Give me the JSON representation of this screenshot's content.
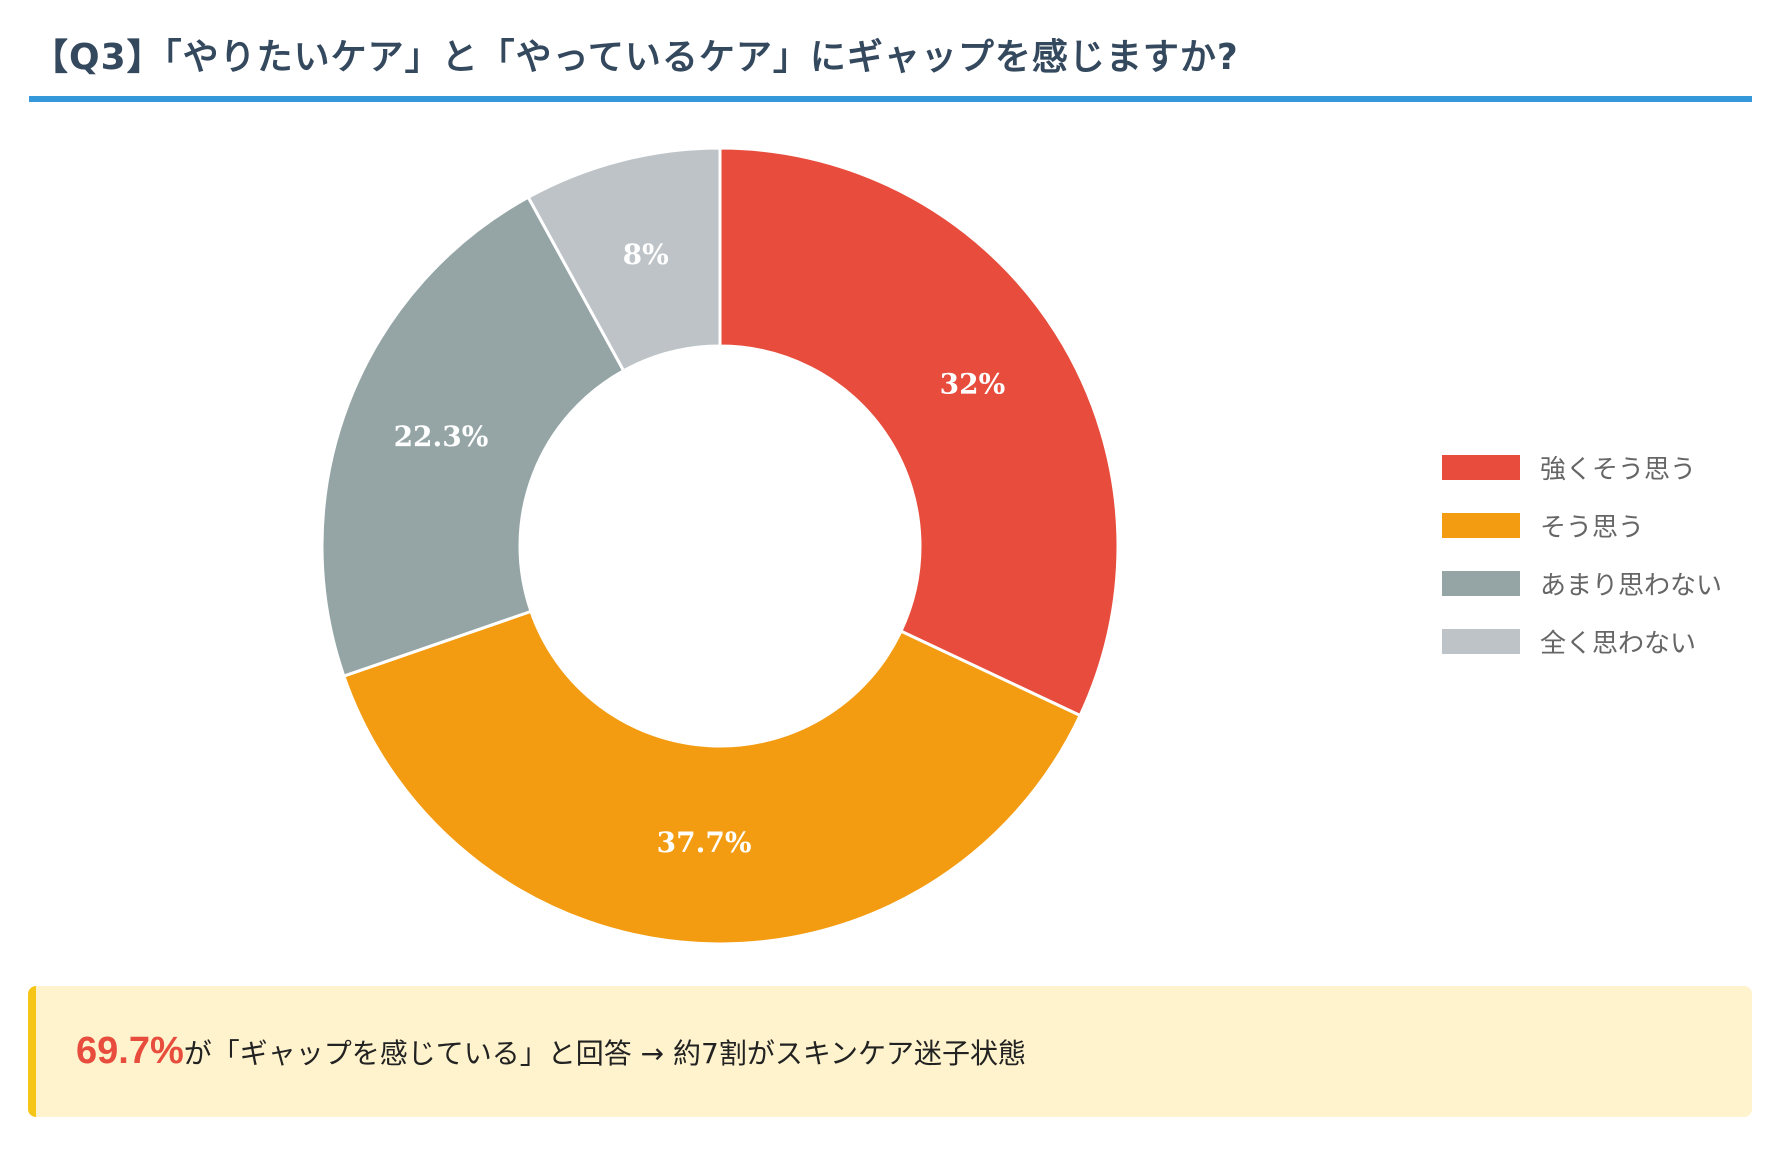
{
  "header": {
    "title": "【Q3】「やりたいケア」と「やっているケア」にギャップを感じますか?"
  },
  "chart_data": {
    "type": "pie",
    "variant": "donut",
    "title": "【Q3】「やりたいケア」と「やっているケア」にギャップを感じますか?",
    "categories": [
      "強くそう思う",
      "そう思う",
      "あまり思わない",
      "全く思わない"
    ],
    "values": [
      32.0,
      37.7,
      22.3,
      8.0
    ],
    "value_labels": [
      "32%",
      "37.7%",
      "22.3%",
      "8%"
    ],
    "colors": [
      "#e74c3c",
      "#f39c12",
      "#95a5a6",
      "#bdc3c7"
    ],
    "legend_position": "right"
  },
  "callout": {
    "highlight": "69.7%",
    "text": "が「ギャップを感じている」と回答 → 約7割がスキンケア迷子状態"
  }
}
